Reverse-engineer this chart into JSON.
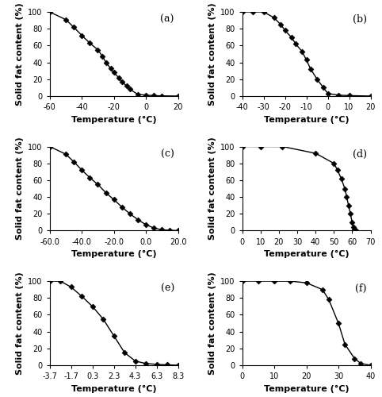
{
  "panels": [
    {
      "label": "(a)",
      "x_markers": [
        -60,
        -50,
        -45,
        -40,
        -35,
        -30,
        -27,
        -25,
        -22,
        -20,
        -17,
        -15,
        -12,
        -10,
        -5,
        0,
        5,
        10,
        20
      ],
      "y_markers": [
        100,
        91,
        82,
        72,
        63,
        55,
        47,
        40,
        33,
        28,
        22,
        17,
        12,
        8,
        2,
        1,
        0.5,
        0.2,
        0
      ],
      "xlim": [
        -60,
        20
      ],
      "xticks": [
        -60,
        -40,
        -20,
        0,
        20
      ],
      "xtick_labels": [
        "-60",
        "-40",
        "-20",
        "0",
        "20"
      ],
      "ylim": [
        0,
        100
      ],
      "yticks": [
        0,
        20,
        40,
        60,
        80,
        100
      ]
    },
    {
      "label": "(b)",
      "x_markers": [
        -40,
        -35,
        -30,
        -25,
        -22,
        -20,
        -17,
        -15,
        -12,
        -10,
        -8,
        -5,
        -2,
        0,
        5,
        10,
        20
      ],
      "y_markers": [
        100,
        100,
        100,
        93,
        85,
        78,
        70,
        62,
        53,
        43,
        32,
        20,
        10,
        3,
        1,
        0.5,
        0
      ],
      "xlim": [
        -40,
        20
      ],
      "xticks": [
        -40,
        -30,
        -20,
        -10,
        0,
        10,
        20
      ],
      "xtick_labels": [
        "-40",
        "-30",
        "-20",
        "-10",
        "0",
        "10",
        "20"
      ],
      "ylim": [
        0,
        100
      ],
      "yticks": [
        0,
        20,
        40,
        60,
        80,
        100
      ]
    },
    {
      "label": "(c)",
      "x_markers": [
        -60,
        -50,
        -45,
        -40,
        -35,
        -30,
        -25,
        -20,
        -15,
        -10,
        -5,
        0,
        5,
        10,
        15,
        20
      ],
      "y_markers": [
        100,
        91,
        82,
        72,
        63,
        55,
        45,
        37,
        28,
        20,
        13,
        7,
        3,
        1,
        0.5,
        0
      ],
      "xlim": [
        -60,
        20
      ],
      "xticks": [
        -60.0,
        -40.0,
        -20.0,
        0.0,
        20.0
      ],
      "xtick_labels": [
        "-60.0",
        "-40.0",
        "-20.0",
        "0.0",
        "20.0"
      ],
      "ylim": [
        0,
        100
      ],
      "yticks": [
        0,
        20,
        40,
        60,
        80,
        100
      ]
    },
    {
      "label": "(d)",
      "x_markers": [
        0,
        10,
        22,
        40,
        50,
        52,
        54,
        56,
        57,
        58,
        59,
        60,
        60.5,
        61,
        62
      ],
      "y_markers": [
        100,
        100,
        100,
        92,
        80,
        72,
        62,
        50,
        40,
        30,
        20,
        10,
        4,
        1,
        0
      ],
      "xlim": [
        0,
        70
      ],
      "xticks": [
        0,
        10,
        20,
        30,
        40,
        50,
        60,
        70
      ],
      "xtick_labels": [
        "0",
        "10",
        "20",
        "30",
        "40",
        "50",
        "60",
        "70"
      ],
      "ylim": [
        0,
        100
      ],
      "yticks": [
        0,
        20,
        40,
        60,
        80,
        100
      ]
    },
    {
      "label": "(e)",
      "x_markers": [
        -3.7,
        -2.7,
        -1.7,
        -0.7,
        0.3,
        1.3,
        2.3,
        3.3,
        4.3,
        5.3,
        6.3,
        7.3,
        8.3
      ],
      "y_markers": [
        100,
        100,
        93,
        82,
        70,
        55,
        35,
        15,
        5,
        2,
        1,
        0.5,
        0
      ],
      "xlim": [
        -3.7,
        8.3
      ],
      "xticks": [
        -3.7,
        -1.7,
        0.3,
        2.3,
        4.3,
        6.3,
        8.3
      ],
      "xtick_labels": [
        "-3.7",
        "-1.7",
        "0.3",
        "2.3",
        "4.3",
        "6.3",
        "8.3"
      ],
      "ylim": [
        0,
        100
      ],
      "yticks": [
        0,
        20,
        40,
        60,
        80,
        100
      ]
    },
    {
      "label": "(f)",
      "x_markers": [
        0,
        5,
        10,
        15,
        20,
        25,
        27,
        30,
        32,
        35,
        37,
        40
      ],
      "y_markers": [
        100,
        100,
        100,
        100,
        98,
        90,
        78,
        50,
        25,
        8,
        2,
        0
      ],
      "xlim": [
        0,
        40
      ],
      "xticks": [
        0,
        10,
        20,
        30,
        40
      ],
      "xtick_labels": [
        "0",
        "10",
        "20",
        "30",
        "40"
      ],
      "ylim": [
        0,
        100
      ],
      "yticks": [
        0,
        20,
        40,
        60,
        80,
        100
      ]
    }
  ],
  "line_color": "#000000",
  "marker": "D",
  "markersize": 3.5,
  "linewidth": 1.0,
  "ylabel": "Solid fat content (%)",
  "xlabel": "Temperature (°C)",
  "label_fontsize": 8,
  "tick_fontsize": 7,
  "label_font_weight": "bold"
}
